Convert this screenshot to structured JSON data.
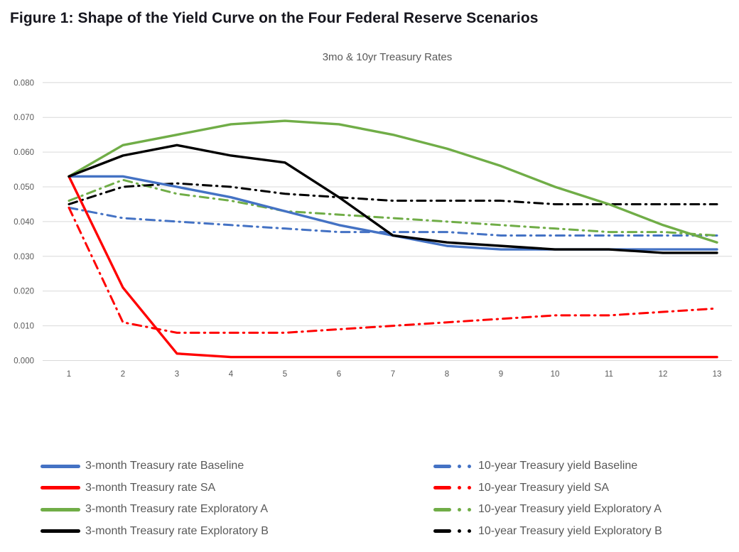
{
  "header": {
    "title": "Figure 1: Shape of the Yield Curve on the Four Federal Reserve Scenarios"
  },
  "chart": {
    "title": "3mo & 10yr Treasury Rates",
    "axis": {
      "grid_color": "#d9d9d9",
      "label_color": "#595959"
    },
    "colors": {
      "baseline_blue": "#4472c4",
      "sa_red": "#ff0000",
      "exploratory_a_green": "#70ad47",
      "exploratory_b_black": "#000000"
    }
  },
  "chart_data": {
    "type": "line",
    "title": "3mo & 10yr Treasury Rates",
    "x": [
      1,
      2,
      3,
      4,
      5,
      6,
      7,
      8,
      9,
      10,
      11,
      12,
      13
    ],
    "ylim": [
      0.0,
      0.08
    ],
    "ytick_step": 0.01,
    "ytick_labels": [
      "0.000",
      "0.010",
      "0.020",
      "0.030",
      "0.040",
      "0.050",
      "0.060",
      "0.070",
      "0.080"
    ],
    "grid": true,
    "legend_position": "bottom",
    "series": [
      {
        "name": "3-month Treasury rate Baseline",
        "color": "#4472c4",
        "style": "solid",
        "values": [
          0.053,
          0.053,
          0.05,
          0.047,
          0.043,
          0.039,
          0.036,
          0.033,
          0.032,
          0.032,
          0.032,
          0.032,
          0.032
        ]
      },
      {
        "name": "3-month Treasury rate SA",
        "color": "#ff0000",
        "style": "solid",
        "values": [
          0.053,
          0.021,
          0.002,
          0.001,
          0.001,
          0.001,
          0.001,
          0.001,
          0.001,
          0.001,
          0.001,
          0.001,
          0.001
        ]
      },
      {
        "name": "3-month Treasury rate Exploratory A",
        "color": "#70ad47",
        "style": "solid",
        "values": [
          0.053,
          0.062,
          0.065,
          0.068,
          0.069,
          0.068,
          0.065,
          0.061,
          0.056,
          0.05,
          0.045,
          0.039,
          0.034
        ]
      },
      {
        "name": "3-month Treasury rate Exploratory B",
        "color": "#000000",
        "style": "solid",
        "values": [
          0.053,
          0.059,
          0.062,
          0.059,
          0.057,
          0.047,
          0.036,
          0.034,
          0.033,
          0.032,
          0.032,
          0.031,
          0.031
        ]
      },
      {
        "name": "10-year Treasury yield Baseline",
        "color": "#4472c4",
        "style": "dashdot",
        "values": [
          0.044,
          0.041,
          0.04,
          0.039,
          0.038,
          0.037,
          0.037,
          0.037,
          0.036,
          0.036,
          0.036,
          0.036,
          0.036
        ]
      },
      {
        "name": "10-year Treasury yield SA",
        "color": "#ff0000",
        "style": "dashdot",
        "values": [
          0.044,
          0.011,
          0.008,
          0.008,
          0.008,
          0.009,
          0.01,
          0.011,
          0.012,
          0.013,
          0.013,
          0.014,
          0.015
        ]
      },
      {
        "name": "10-year Treasury yield Exploratory A",
        "color": "#70ad47",
        "style": "dashdot",
        "values": [
          0.046,
          0.052,
          0.048,
          0.046,
          0.043,
          0.042,
          0.041,
          0.04,
          0.039,
          0.038,
          0.037,
          0.037,
          0.036
        ]
      },
      {
        "name": "10-year Treasury yield Exploratory B",
        "color": "#000000",
        "style": "dashdot",
        "values": [
          0.045,
          0.05,
          0.051,
          0.05,
          0.048,
          0.047,
          0.046,
          0.046,
          0.046,
          0.045,
          0.045,
          0.045,
          0.045
        ]
      }
    ]
  }
}
